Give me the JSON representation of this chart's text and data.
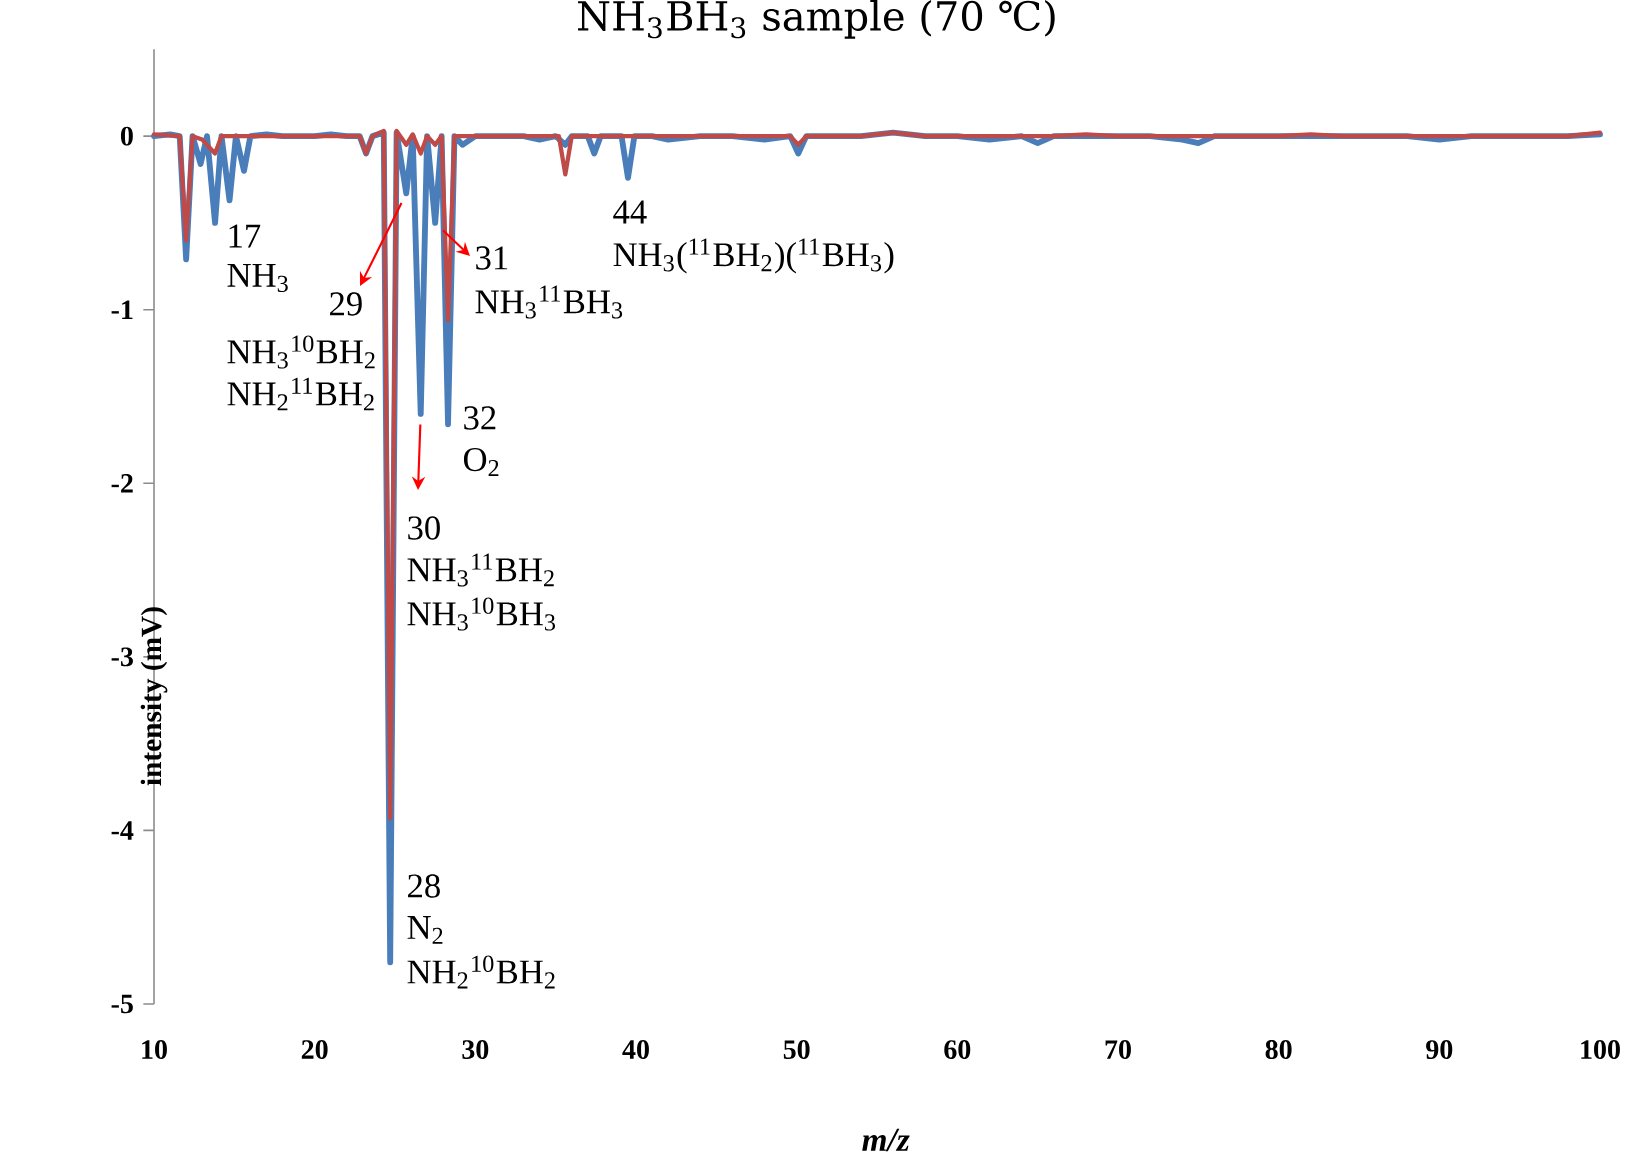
{
  "chart_data": {
    "type": "line",
    "title": "NH$_{3}$BH$_{3}$ sample (70 ℃)",
    "xlabel": "m/z",
    "ylabel": "intensity (mV)",
    "xlim": [
      10,
      100
    ],
    "xticks": [
      10,
      20,
      30,
      40,
      50,
      60,
      70,
      80,
      90,
      100
    ],
    "ylim": [
      -5,
      0.5
    ],
    "yticks": [
      -5,
      -4,
      -3,
      -2,
      -1,
      0
    ],
    "series": [
      {
        "color": "#4a7ebb",
        "x": [
          10,
          11,
          11.6,
          12,
          12.4,
          12.9,
          13.3,
          13.8,
          14.2,
          14.7,
          15.1,
          15.6,
          16,
          17,
          18,
          19,
          20,
          21,
          22,
          22.8,
          23.2,
          23.6,
          24.3,
          24.7,
          25.1,
          25.7,
          26.1,
          26.6,
          27.0,
          27.5,
          27.9,
          28.3,
          28.7,
          29.2,
          30,
          31,
          32,
          33,
          34,
          35,
          35.6,
          36,
          37,
          37.4,
          37.8,
          38.5,
          39.1,
          39.5,
          39.9,
          41,
          42,
          44,
          46,
          48,
          49.6,
          50.1,
          50.6,
          52,
          54,
          56,
          58,
          60,
          62,
          64,
          65,
          66,
          68,
          70,
          72,
          74,
          75,
          76,
          78,
          80,
          82,
          84,
          86,
          88,
          90,
          92,
          94,
          96,
          98,
          100
        ],
        "values": [
          0,
          0.01,
          0,
          -0.71,
          0,
          -0.16,
          0,
          -0.5,
          0,
          -0.37,
          0,
          -0.2,
          0,
          0.01,
          0,
          0,
          0,
          0.01,
          0,
          0,
          -0.1,
          0,
          0.02,
          -4.76,
          0.02,
          -0.33,
          0,
          -1.6,
          0,
          -0.5,
          0,
          -1.66,
          0,
          -0.05,
          0,
          0,
          0,
          0,
          -0.02,
          0,
          -0.05,
          0,
          0,
          -0.1,
          0,
          0,
          0,
          -0.24,
          0,
          0,
          -0.02,
          0,
          0,
          -0.02,
          0,
          -0.1,
          0,
          0,
          0,
          0.02,
          0,
          0,
          -0.02,
          0,
          -0.04,
          0,
          0,
          0,
          0,
          -0.02,
          -0.04,
          0,
          0,
          0,
          0,
          0,
          0,
          0,
          -0.02,
          0,
          0,
          0,
          0,
          0.01
        ]
      },
      {
        "color": "#be4b48",
        "x": [
          10,
          11.6,
          12,
          12.4,
          13,
          13.8,
          14.2,
          15,
          16,
          18,
          20,
          22,
          22.8,
          23.2,
          23.6,
          24.3,
          24.7,
          25.1,
          25.7,
          26.1,
          26.6,
          27.0,
          27.5,
          27.9,
          28.3,
          28.7,
          29.5,
          31,
          33,
          35.2,
          35.6,
          36,
          38,
          40,
          42,
          44,
          46,
          48,
          49.6,
          50.1,
          50.6,
          52,
          54,
          56,
          58,
          60,
          62,
          64,
          66,
          68,
          70,
          72,
          74,
          76,
          78,
          80,
          82,
          84,
          86,
          88,
          90,
          92,
          94,
          96,
          98,
          100
        ],
        "values": [
          0.01,
          0,
          -0.6,
          0,
          -0.02,
          -0.1,
          0,
          0,
          0,
          0,
          0,
          0,
          0,
          -0.1,
          0,
          0.03,
          -3.93,
          0.03,
          -0.05,
          0.01,
          -0.1,
          0,
          -0.05,
          0,
          -1.06,
          0,
          0,
          0,
          0,
          0,
          -0.22,
          0,
          0,
          0,
          0,
          0,
          0,
          0,
          0,
          -0.05,
          0,
          0,
          0,
          0.02,
          0,
          0,
          0,
          0,
          0,
          0.01,
          0,
          0,
          0,
          0,
          0,
          0,
          0.01,
          0,
          0,
          0,
          0,
          0,
          0,
          0,
          0,
          0.02
        ]
      }
    ],
    "annotations": [
      "17",
      "NH$_{3}$",
      {
        "text": "29",
        "x": 25.7,
        "y": -0.33
      },
      "NH$_{3}$$^{10}$BH$_{2}$",
      "NH$_{2}$$^{11}$BH$_{2}$",
      {
        "text": "31",
        "x": 27.5,
        "y": -0.5
      },
      "NH$_{3}$$^{11}$BH$_{3}$",
      "32",
      "O$_{2}$",
      {
        "text": "30",
        "x": 26.6,
        "y": -1.6
      },
      "NH$_{3}$$^{11}$BH$_{2}$",
      "NH$_{3}$$^{10}$BH$_{3}$",
      "28",
      "N$_{2}$",
      "NH$_{2}$$^{10}$BH$_{2}$",
      "44",
      "NH$_{3}$($^{11}$BH$_{2}$)($^{11}$BH$_{3}$)"
    ]
  }
}
